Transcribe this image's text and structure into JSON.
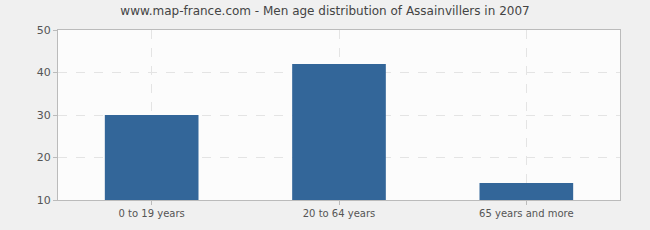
{
  "chart_data": {
    "type": "bar",
    "title": "www.map-france.com - Men age distribution of Assainvillers in 2007",
    "categories": [
      "0 to 19 years",
      "20 to 64 years",
      "65 years and more"
    ],
    "values": [
      30,
      42,
      14
    ],
    "color": "#336699",
    "ylim": [
      10,
      50
    ],
    "yticks": [
      10,
      20,
      30,
      40,
      50
    ],
    "grid": true
  }
}
